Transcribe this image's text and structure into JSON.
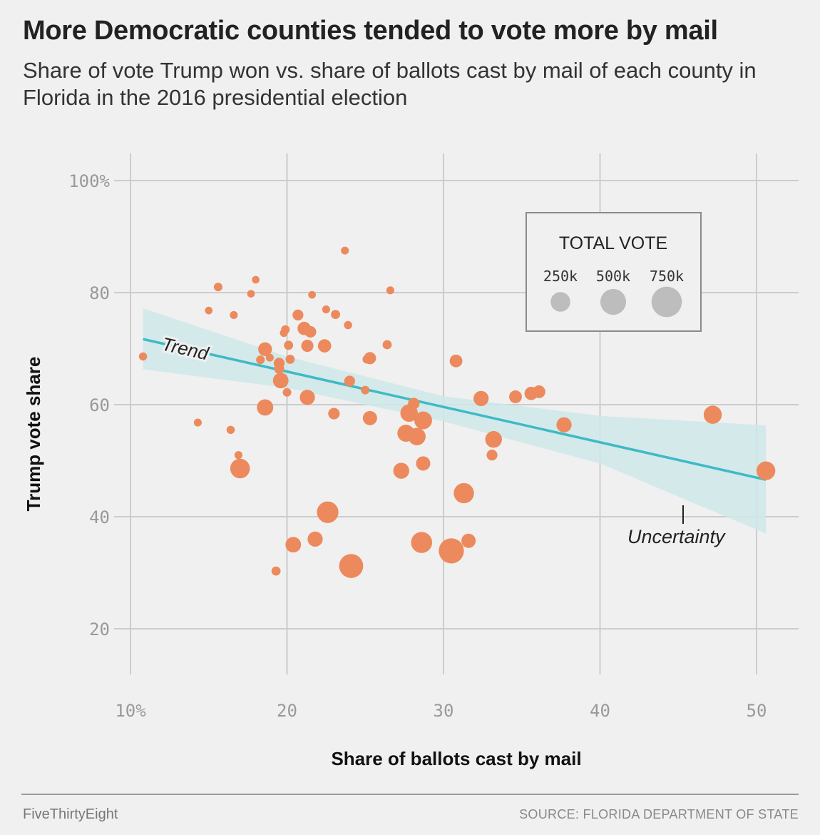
{
  "title": "More Democratic counties tended to vote more by mail",
  "subtitle": "Share of vote Trump won vs. share of ballots cast by mail of each county in Florida in the 2016 presidential election",
  "footer": {
    "brand": "FiveThirtyEight",
    "source": "SOURCE: FLORIDA DEPARTMENT OF STATE"
  },
  "colors": {
    "point": "#ec8a5d",
    "trend": "#3dbac6",
    "band": "#cfe7e9",
    "grid": "#cccccc",
    "legend_dot": "#bdbdbd"
  },
  "chart_data": {
    "type": "scatter",
    "xlabel": "Share of ballots cast by mail",
    "ylabel": "Trump vote share",
    "xlim": [
      8,
      52
    ],
    "ylim": [
      15,
      105
    ],
    "grid": true,
    "x_ticks": [
      {
        "value": 10,
        "label": "10%"
      },
      {
        "value": 20,
        "label": "20"
      },
      {
        "value": 30,
        "label": "30"
      },
      {
        "value": 40,
        "label": "40"
      },
      {
        "value": 50,
        "label": "50"
      }
    ],
    "y_ticks": [
      {
        "value": 20,
        "label": "20"
      },
      {
        "value": 40,
        "label": "40"
      },
      {
        "value": 60,
        "label": "60"
      },
      {
        "value": 80,
        "label": "80"
      },
      {
        "value": 100,
        "label": "100%"
      }
    ],
    "trend": {
      "label": "Trend",
      "x": [
        10.8,
        50.6
      ],
      "y": [
        71.7,
        46.6
      ]
    },
    "uncertainty": {
      "label": "Uncertainty",
      "x": [
        10.8,
        20,
        30,
        40,
        50.6
      ],
      "upper": [
        77.2,
        68.6,
        61.5,
        58.0,
        56.3
      ],
      "lower": [
        66.3,
        63.0,
        57.0,
        49.5,
        37.0
      ]
    },
    "legend": {
      "title": "TOTAL VOTE",
      "items": [
        {
          "label": "250k",
          "votes": 250000
        },
        {
          "label": "500k",
          "votes": 500000
        },
        {
          "label": "750k",
          "votes": 750000
        }
      ]
    },
    "points": [
      {
        "x": 10.8,
        "y": 68.6,
        "votes": 12000
      },
      {
        "x": 14.3,
        "y": 56.8,
        "votes": 10000
      },
      {
        "x": 15.0,
        "y": 76.8,
        "votes": 8000
      },
      {
        "x": 15.6,
        "y": 81.0,
        "votes": 15000
      },
      {
        "x": 16.4,
        "y": 55.5,
        "votes": 12000
      },
      {
        "x": 16.6,
        "y": 76.0,
        "votes": 10000
      },
      {
        "x": 16.9,
        "y": 51.0,
        "votes": 10000
      },
      {
        "x": 17.0,
        "y": 48.6,
        "votes": 250000
      },
      {
        "x": 17.7,
        "y": 79.8,
        "votes": 8000
      },
      {
        "x": 18.0,
        "y": 82.3,
        "votes": 8000
      },
      {
        "x": 18.3,
        "y": 68.0,
        "votes": 15000
      },
      {
        "x": 18.6,
        "y": 69.9,
        "votes": 90000
      },
      {
        "x": 18.6,
        "y": 59.5,
        "votes": 150000
      },
      {
        "x": 18.9,
        "y": 68.4,
        "votes": 10000
      },
      {
        "x": 19.3,
        "y": 30.3,
        "votes": 20000
      },
      {
        "x": 19.5,
        "y": 67.4,
        "votes": 40000
      },
      {
        "x": 19.5,
        "y": 66.4,
        "votes": 30000
      },
      {
        "x": 19.6,
        "y": 64.3,
        "votes": 130000
      },
      {
        "x": 19.8,
        "y": 72.8,
        "votes": 10000
      },
      {
        "x": 19.9,
        "y": 73.4,
        "votes": 15000
      },
      {
        "x": 20.0,
        "y": 62.2,
        "votes": 15000
      },
      {
        "x": 20.1,
        "y": 70.6,
        "votes": 20000
      },
      {
        "x": 20.2,
        "y": 68.1,
        "votes": 20000
      },
      {
        "x": 20.4,
        "y": 35.0,
        "votes": 130000
      },
      {
        "x": 20.7,
        "y": 76.0,
        "votes": 40000
      },
      {
        "x": 21.1,
        "y": 73.6,
        "votes": 80000
      },
      {
        "x": 21.3,
        "y": 70.5,
        "votes": 60000
      },
      {
        "x": 21.3,
        "y": 61.3,
        "votes": 120000
      },
      {
        "x": 21.5,
        "y": 73.0,
        "votes": 50000
      },
      {
        "x": 21.6,
        "y": 79.6,
        "votes": 8000
      },
      {
        "x": 21.8,
        "y": 36.0,
        "votes": 120000
      },
      {
        "x": 22.4,
        "y": 70.5,
        "votes": 80000
      },
      {
        "x": 22.5,
        "y": 77.0,
        "votes": 10000
      },
      {
        "x": 22.6,
        "y": 40.8,
        "votes": 320000
      },
      {
        "x": 23.0,
        "y": 58.4,
        "votes": 50000
      },
      {
        "x": 23.1,
        "y": 76.1,
        "votes": 20000
      },
      {
        "x": 23.7,
        "y": 87.5,
        "votes": 10000
      },
      {
        "x": 23.9,
        "y": 74.2,
        "votes": 12000
      },
      {
        "x": 24.0,
        "y": 64.2,
        "votes": 40000
      },
      {
        "x": 24.1,
        "y": 31.2,
        "votes": 420000
      },
      {
        "x": 25.0,
        "y": 62.6,
        "votes": 15000
      },
      {
        "x": 25.1,
        "y": 68.1,
        "votes": 15000
      },
      {
        "x": 25.3,
        "y": 68.3,
        "votes": 60000
      },
      {
        "x": 25.3,
        "y": 57.6,
        "votes": 100000
      },
      {
        "x": 26.4,
        "y": 70.7,
        "votes": 20000
      },
      {
        "x": 26.6,
        "y": 80.4,
        "votes": 10000
      },
      {
        "x": 27.3,
        "y": 48.2,
        "votes": 140000
      },
      {
        "x": 27.6,
        "y": 54.9,
        "votes": 170000
      },
      {
        "x": 27.8,
        "y": 58.5,
        "votes": 180000
      },
      {
        "x": 28.1,
        "y": 60.2,
        "votes": 50000
      },
      {
        "x": 28.3,
        "y": 54.3,
        "votes": 180000
      },
      {
        "x": 28.6,
        "y": 35.4,
        "votes": 300000
      },
      {
        "x": 28.7,
        "y": 49.5,
        "votes": 100000
      },
      {
        "x": 28.7,
        "y": 57.2,
        "votes": 190000
      },
      {
        "x": 30.5,
        "y": 33.9,
        "votes": 470000
      },
      {
        "x": 30.8,
        "y": 67.8,
        "votes": 70000
      },
      {
        "x": 31.3,
        "y": 44.2,
        "votes": 270000
      },
      {
        "x": 31.6,
        "y": 35.7,
        "votes": 100000
      },
      {
        "x": 32.4,
        "y": 61.1,
        "votes": 120000
      },
      {
        "x": 33.1,
        "y": 51.0,
        "votes": 40000
      },
      {
        "x": 33.2,
        "y": 53.8,
        "votes": 160000
      },
      {
        "x": 34.6,
        "y": 61.4,
        "votes": 70000
      },
      {
        "x": 35.6,
        "y": 62.0,
        "votes": 80000
      },
      {
        "x": 36.1,
        "y": 62.3,
        "votes": 70000
      },
      {
        "x": 37.7,
        "y": 56.4,
        "votes": 120000
      },
      {
        "x": 47.2,
        "y": 58.2,
        "votes": 200000
      },
      {
        "x": 50.6,
        "y": 48.2,
        "votes": 220000
      }
    ]
  }
}
